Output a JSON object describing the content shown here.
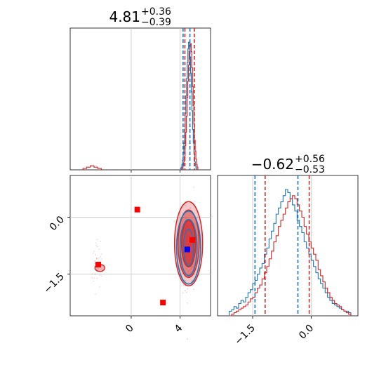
{
  "chart_data": {
    "type": "corner",
    "colors": {
      "series_a": "#1f77b4",
      "series_b": "#d62728",
      "marker": "#ff0000",
      "truth": "#0000ff",
      "grid": "#c8c8c8"
    },
    "panels": [
      {
        "id": "p1-marginal",
        "title": {
          "main": "4.81",
          "sup": "+0.36",
          "sub": "−0.39"
        },
        "xlim": [
          -5,
          6.5
        ],
        "vlines": [
          4.25,
          4.4,
          4.81,
          5.17
        ],
        "vline_colors": [
          "series_a",
          "series_b",
          "series_a",
          "series_b"
        ],
        "peak_hist": [
          {
            "series": "series_a",
            "peak_x": 4.7,
            "counts": [
              0,
              1,
              2,
              4,
              7,
              12,
              20,
              30,
              42,
              55,
              68,
              80,
              90,
              95,
              92,
              84,
              72,
              58,
              44,
              30,
              20,
              12,
              6,
              3,
              1,
              0
            ]
          },
          {
            "series": "series_b",
            "peak_x": 4.8,
            "counts": [
              0,
              1,
              2,
              3,
              6,
              10,
              18,
              28,
              40,
              54,
              66,
              78,
              88,
              92,
              94,
              88,
              76,
              62,
              48,
              34,
              22,
              14,
              8,
              4,
              2,
              0
            ]
          }
        ],
        "outlier_hist": {
          "series": "series_b",
          "x": [
            -3.8,
            -3.5,
            -3.2,
            -2.9,
            -2.6
          ],
          "counts": [
            1,
            2,
            3,
            2,
            1
          ]
        }
      },
      {
        "id": "p2-marginal",
        "title": {
          "main": "−0.62",
          "sup": "+0.56",
          "sub": "−0.53"
        },
        "xlim": [
          -2.4,
          1.2
        ],
        "x_ticks": [
          "−1.5",
          "0.0"
        ],
        "x_tick_values": [
          -1.5,
          0.0
        ],
        "vlines": [
          -1.44,
          -1.18,
          -0.34,
          -0.05
        ],
        "vline_colors": [
          "series_a",
          "series_b",
          "series_a",
          "series_b"
        ],
        "hist_series_a": {
          "x_start": -2.1,
          "bin": 0.06,
          "counts": [
            3,
            4,
            6,
            5,
            8,
            10,
            9,
            12,
            15,
            17,
            21,
            23,
            27,
            31,
            34,
            40,
            44,
            50,
            55,
            60,
            66,
            70,
            74,
            78,
            82,
            80,
            76,
            72,
            68,
            62,
            58,
            54,
            48,
            44,
            40,
            36,
            32,
            28,
            24,
            21,
            18,
            15,
            12,
            10,
            8,
            7,
            6,
            5,
            4,
            3,
            3,
            2
          ]
        },
        "hist_series_b": {
          "x_start": -2.1,
          "bin": 0.06,
          "counts": [
            0,
            1,
            2,
            3,
            4,
            5,
            6,
            7,
            9,
            11,
            12,
            15,
            18,
            20,
            24,
            28,
            32,
            37,
            42,
            48,
            52,
            58,
            62,
            66,
            70,
            74,
            76,
            78,
            76,
            72,
            68,
            64,
            58,
            53,
            48,
            44,
            40,
            36,
            30,
            26,
            22,
            18,
            15,
            12,
            10,
            8,
            7,
            6,
            4,
            3,
            2,
            1
          ]
        }
      },
      {
        "id": "joint",
        "xlim": [
          -5,
          6.5
        ],
        "ylim": [
          -2.6,
          1.1
        ],
        "x_ticks": [
          "0",
          "4"
        ],
        "x_tick_values": [
          0,
          4
        ],
        "y_ticks": [
          "0.0",
          "−1.5"
        ],
        "y_tick_values": [
          0.0,
          -1.5
        ],
        "series_a_mode": {
          "x": 4.7,
          "y": -0.8
        },
        "series_b_mode": {
          "x": 4.7,
          "y": -0.7
        },
        "outlier_cluster": {
          "x": -2.8,
          "y": -1.3
        },
        "red_markers": [
          {
            "x": -2.7,
            "y": -1.25
          },
          {
            "x": 0.5,
            "y": 0.2
          },
          {
            "x": 2.6,
            "y": -2.25
          },
          {
            "x": 5.0,
            "y": -0.6
          }
        ],
        "blue_marker": {
          "x": 4.6,
          "y": -0.85
        }
      }
    ]
  }
}
